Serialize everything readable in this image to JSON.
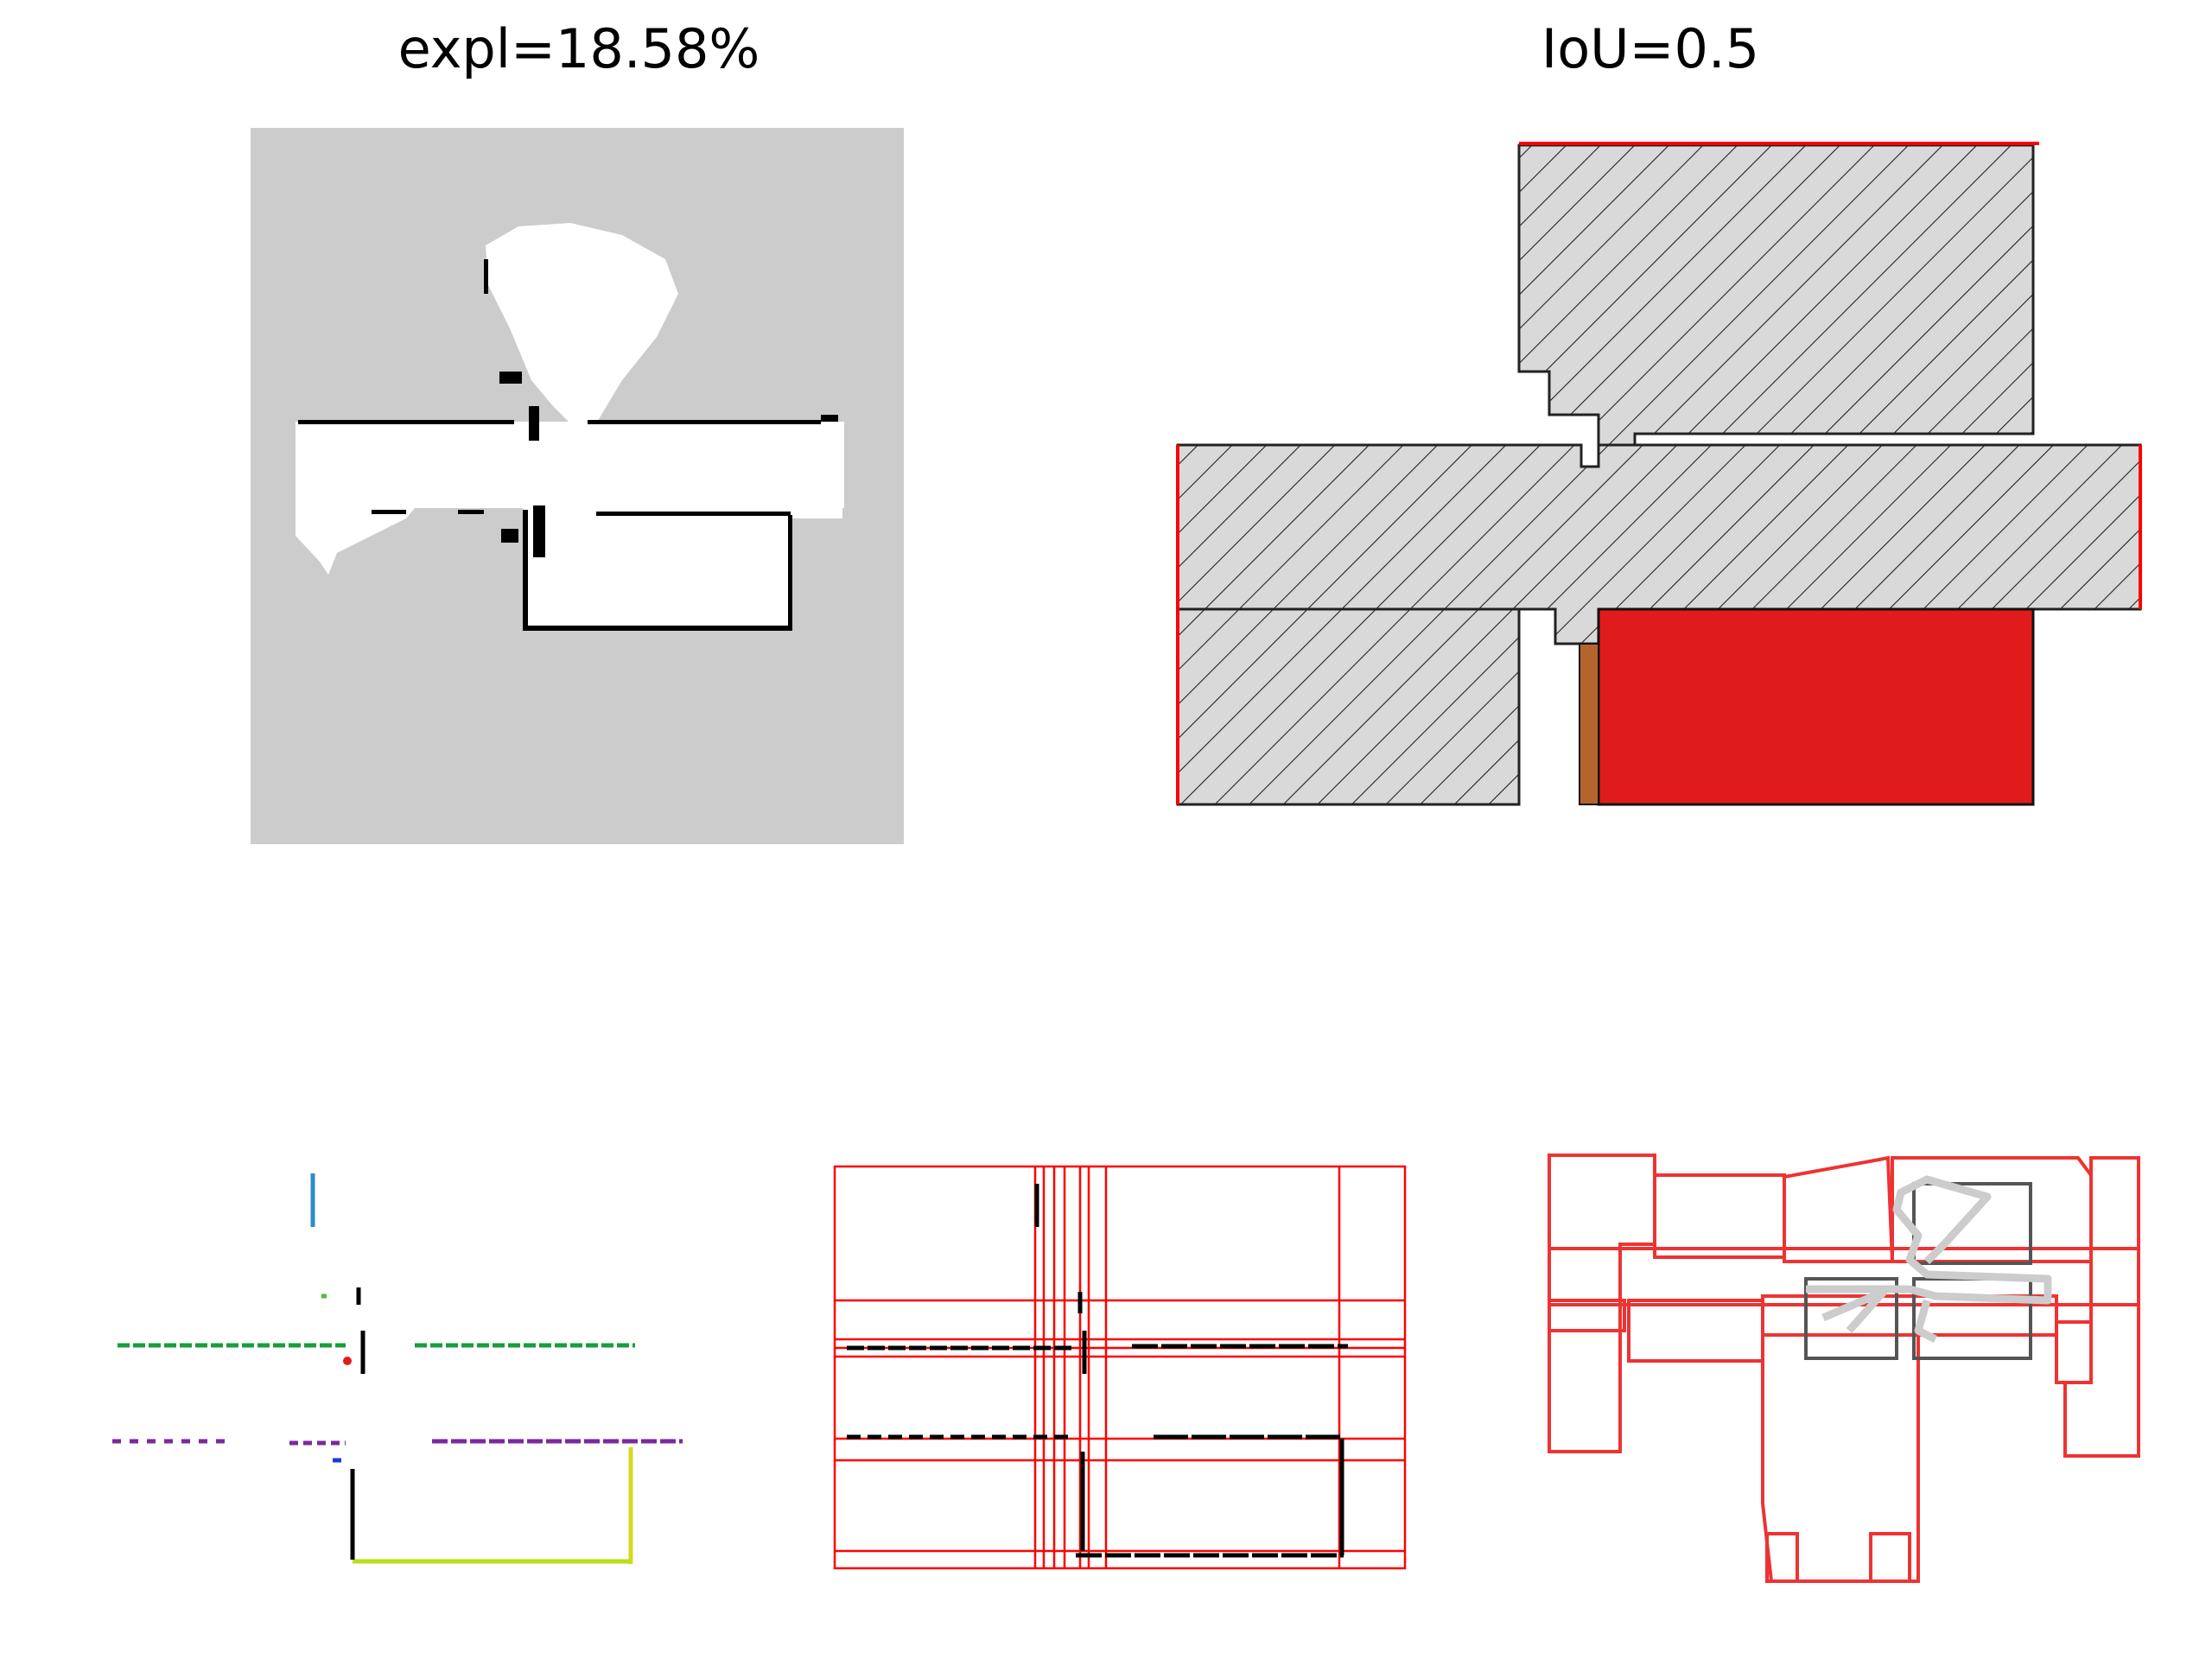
{
  "titles": {
    "exploration": "expl=18.58%",
    "iou": "IoU=0.5"
  },
  "colors": {
    "unexplored": "#cccccc",
    "explored": "#ffffff",
    "wall": "#000000",
    "room_fill": "#d9d9d9",
    "highlight_room": "#e01b1b",
    "segment_lines": "#ff0000",
    "door": "#b5642d"
  },
  "panels": [
    {
      "name": "exploration-occupancy-map"
    },
    {
      "name": "room-overlap-iou-diagram"
    },
    {
      "name": "clustered-wall-segments"
    },
    {
      "name": "wall-line-grid"
    },
    {
      "name": "room-polygon-overlay"
    }
  ]
}
